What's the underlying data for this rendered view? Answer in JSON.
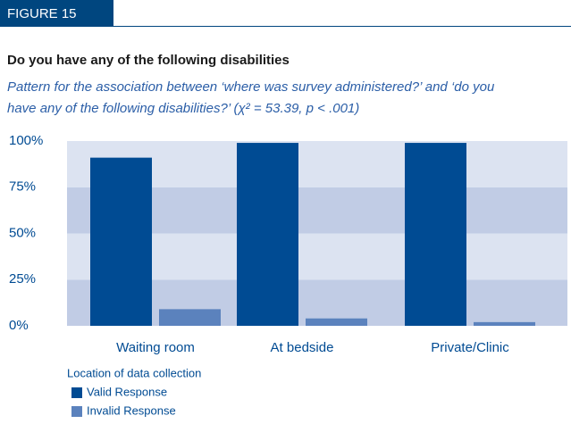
{
  "figure_label": "FIGURE 15",
  "chart_data": {
    "type": "bar",
    "title": "Do you have any of the following disabilities",
    "subtitle": [
      "Pattern for the association between ‘where was survey administered?’ and ‘do you",
      "have any of the following disabilities?’ (χ² = 53.39, p < .001)"
    ],
    "x_label": "Location of data collection",
    "categories": [
      "Waiting room",
      "At bedside",
      "Private/Clinic"
    ],
    "series": [
      {
        "name": "Valid Response",
        "color": "#004b93",
        "values": [
          91,
          99,
          99
        ]
      },
      {
        "name": "Invalid Response",
        "color": "#5b82bd",
        "values": [
          9,
          4,
          2
        ]
      }
    ],
    "ylim": [
      0,
      100
    ],
    "yticks": [
      {
        "value": 0,
        "label": "0%"
      },
      {
        "value": 25,
        "label": "25%"
      },
      {
        "value": 50,
        "label": "50%"
      },
      {
        "value": 75,
        "label": "75%"
      },
      {
        "value": 100,
        "label": "100%"
      }
    ],
    "legend": "bottom-left"
  }
}
